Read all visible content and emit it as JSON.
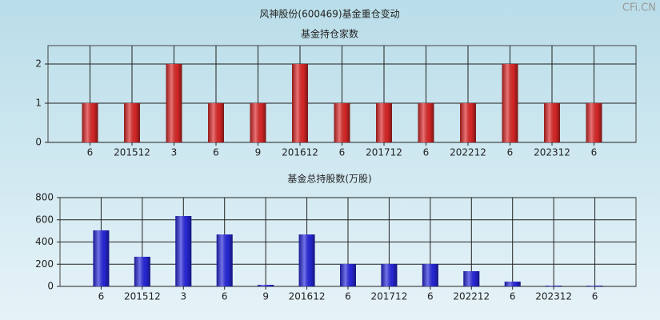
{
  "title": "风神股份(600469)基金重仓变动",
  "watermark": "CFi.CN",
  "chart_data": [
    {
      "type": "bar",
      "title": "基金持仓家数",
      "categories": [
        "6",
        "201512",
        "3",
        "6",
        "9",
        "201612",
        "6",
        "201712",
        "6",
        "202212",
        "6",
        "202312",
        "6"
      ],
      "values": [
        1,
        1,
        2,
        1,
        1,
        2,
        1,
        1,
        1,
        1,
        2,
        1,
        1
      ],
      "color": "#e02828",
      "ylim": [
        0,
        2.47
      ],
      "yticks": [
        0,
        1,
        2
      ],
      "grid": true
    },
    {
      "type": "bar",
      "title": "基金总持股数(万股)",
      "categories": [
        "6",
        "201512",
        "3",
        "6",
        "9",
        "201612",
        "6",
        "201712",
        "6",
        "202212",
        "6",
        "202312",
        "6"
      ],
      "values": [
        505,
        267,
        634,
        468,
        14,
        468,
        202,
        202,
        202,
        137,
        43,
        7,
        7
      ],
      "color": "#2828e0",
      "ylim": [
        0,
        800
      ],
      "yticks": [
        0,
        200,
        400,
        600,
        800
      ],
      "grid": true
    }
  ]
}
